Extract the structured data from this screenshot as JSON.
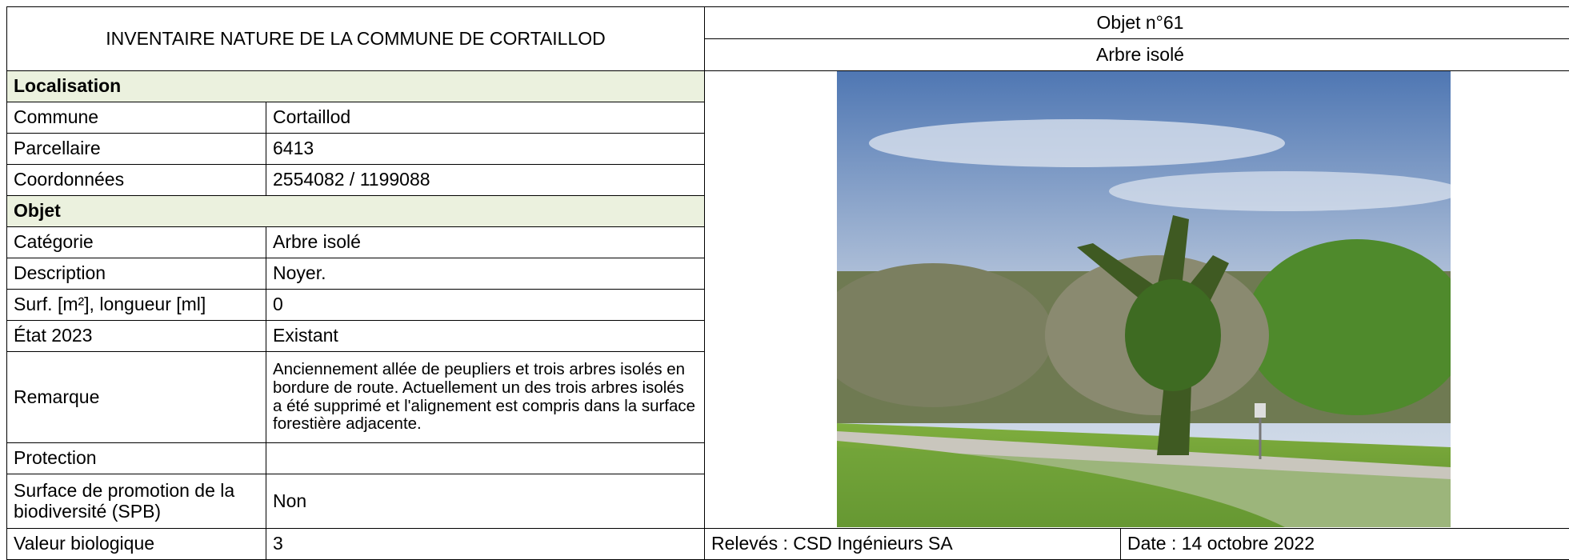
{
  "header": {
    "title": "INVENTAIRE NATURE DE LA COMMUNE DE CORTAILLOD",
    "object_number": "Objet n°61",
    "object_type": "Arbre isolé"
  },
  "table": {
    "sections": [
      {
        "title": "Localisation",
        "rows": [
          {
            "label": "Commune",
            "value": "Cortaillod"
          },
          {
            "label": "Parcellaire",
            "value": "6413"
          },
          {
            "label": "Coordonnées",
            "value": "2554082 / 1199088"
          }
        ]
      },
      {
        "title": "Objet",
        "rows": [
          {
            "label": "Catégorie",
            "value": "Arbre isolé"
          },
          {
            "label": "Description",
            "value": "Noyer."
          },
          {
            "label": "Surf. [m²], longueur [ml]",
            "value": "0"
          },
          {
            "label": "État 2023",
            "value": "Existant"
          },
          {
            "label": "Remarque",
            "value": "Anciennement allée de peupliers et trois arbres isolés en bordure de route. Actuellement un des trois arbres isolés a été supprimé et l'alignement est compris dans la surface forestière adjacente."
          },
          {
            "label": "Protection"
          },
          {
            "label": "Surface de promotion de la biodiversité (SPB)",
            "value": "Non"
          },
          {
            "label": "Valeur biologique",
            "value": "3"
          }
        ]
      }
    ]
  },
  "footer": {
    "releves": "Relevés : CSD Ingénieurs SA",
    "date": "Date : 14 octobre 2022"
  }
}
